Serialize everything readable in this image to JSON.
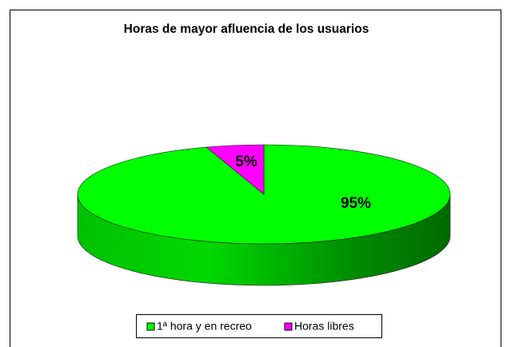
{
  "chart_data": {
    "type": "pie",
    "title": "Horas de mayor afluencia de los usuarios",
    "categories": [
      "1ª hora y en recreo",
      "Horas libres"
    ],
    "values": [
      95,
      5
    ],
    "value_labels": [
      "95%",
      "5%"
    ],
    "colors": [
      "#00ff00",
      "#ff00ff"
    ],
    "legend": "bottom"
  }
}
